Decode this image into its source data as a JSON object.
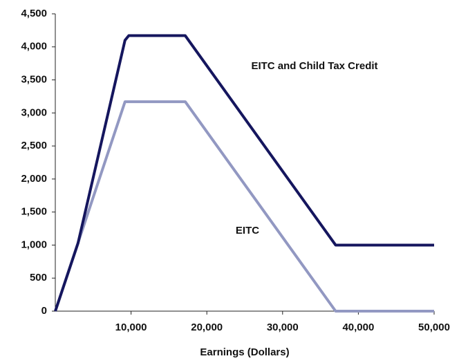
{
  "chart_data": {
    "type": "line",
    "xlabel": "Earnings (Dollars)",
    "xlim": [
      0,
      50000
    ],
    "xticks": [
      {
        "value": 10000,
        "label": "10,000"
      },
      {
        "value": 20000,
        "label": "20,000"
      },
      {
        "value": 30000,
        "label": "30,000"
      },
      {
        "value": 40000,
        "label": "40,000"
      },
      {
        "value": 50000,
        "label": "50,000"
      }
    ],
    "ylim": [
      0,
      4500
    ],
    "yticks": [
      0,
      500,
      {
        "value": 1000,
        "label": "1,000"
      },
      {
        "value": 1500,
        "label": "1,500"
      },
      {
        "value": 2000,
        "label": "2,000"
      },
      {
        "value": 2500,
        "label": "2,500"
      },
      {
        "value": 3000,
        "label": "3,000"
      },
      {
        "value": 3500,
        "label": "3,500"
      },
      {
        "value": 4000,
        "label": "4,000"
      },
      {
        "value": 4500,
        "label": "4,500"
      }
    ],
    "grid": false,
    "series": [
      {
        "name": "EITC and Child Tax Credit",
        "color": "#15165e",
        "x": [
          0,
          3000,
          9200,
          9700,
          17150,
          37000,
          50000
        ],
        "values": [
          0,
          1030,
          4100,
          4170,
          4170,
          1000,
          1000
        ]
      },
      {
        "name": "EITC",
        "color": "#9298c2",
        "x": [
          0,
          9200,
          17150,
          37000,
          50000
        ],
        "values": [
          0,
          3170,
          3170,
          0,
          0
        ]
      }
    ]
  }
}
